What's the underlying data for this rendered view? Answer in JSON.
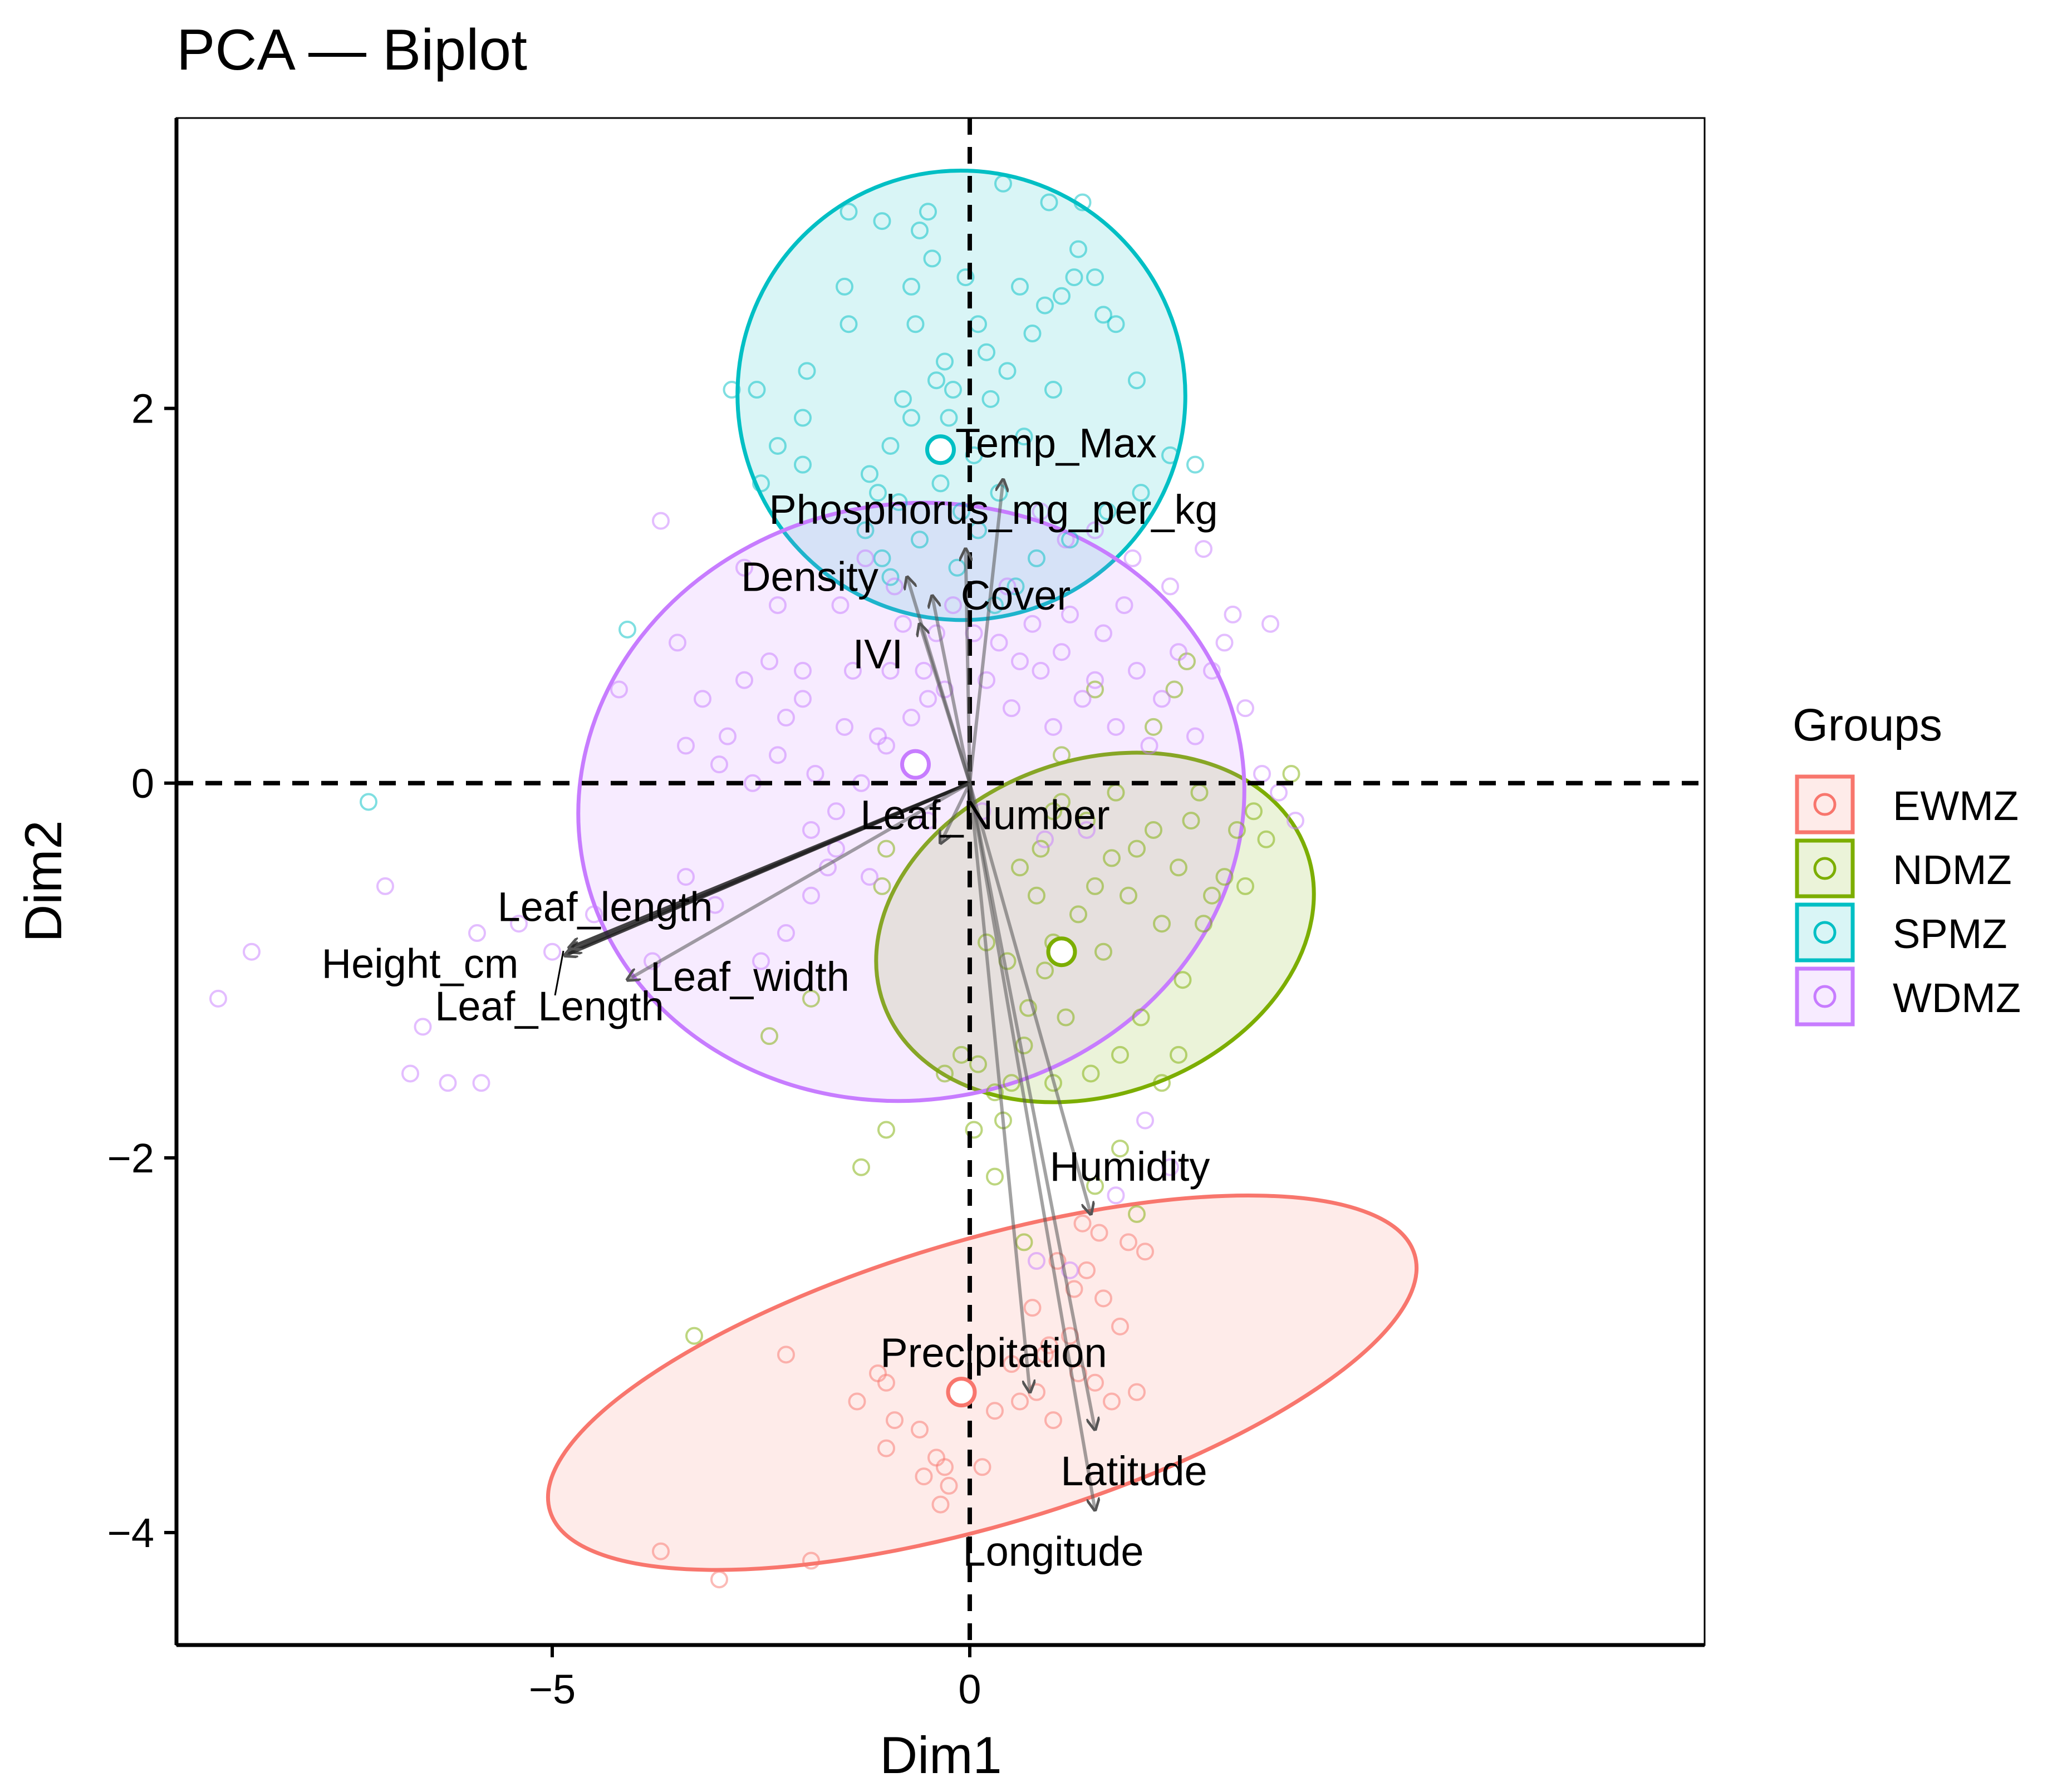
{
  "chart_data": {
    "type": "scatter",
    "title": "PCA — Biplot",
    "xlabel": "Dim1",
    "ylabel": "Dim2",
    "xlim": [
      -9.5,
      8.8
    ],
    "ylim": [
      -4.6,
      3.55
    ],
    "xticks": [
      -5,
      0
    ],
    "xtick_labels": [
      "−5",
      "0"
    ],
    "yticks": [
      -4,
      -2,
      0,
      2
    ],
    "ytick_labels": [
      "−4",
      "−2",
      "0",
      "2"
    ],
    "reference_lines": {
      "x": 0,
      "y": 0,
      "style": "dashed"
    },
    "legend": {
      "title": "Groups",
      "position": "right",
      "items": [
        {
          "name": "EWMZ",
          "color": "#F8766D"
        },
        {
          "name": "NDMZ",
          "color": "#7CAE00"
        },
        {
          "name": "SPMZ",
          "color": "#00BFC4"
        },
        {
          "name": "WDMZ",
          "color": "#C77CFF"
        }
      ]
    },
    "groups": [
      {
        "name": "EWMZ",
        "color": "#F8766D",
        "centroid": [
          -0.1,
          -3.25
        ],
        "ellipse": {
          "center": [
            0.15,
            -3.2
          ],
          "rx": 5.4,
          "ry": 0.76,
          "angle_deg": 16.5
        },
        "points": [
          [
            -3.7,
            -4.1
          ],
          [
            -3.0,
            -4.25
          ],
          [
            -1.9,
            -4.15
          ],
          [
            -2.2,
            -3.05
          ],
          [
            -1.1,
            -3.15
          ],
          [
            -1.0,
            -3.2
          ],
          [
            -0.9,
            -3.4
          ],
          [
            -0.6,
            -3.45
          ],
          [
            -0.4,
            -3.6
          ],
          [
            -0.55,
            -3.7
          ],
          [
            -0.3,
            -3.65
          ],
          [
            -0.25,
            -3.75
          ],
          [
            0.15,
            -3.65
          ],
          [
            0.3,
            -3.35
          ],
          [
            0.5,
            -3.1
          ],
          [
            0.8,
            -3.25
          ],
          [
            0.9,
            -3.05
          ],
          [
            1.0,
            -3.4
          ],
          [
            1.2,
            -2.95
          ],
          [
            1.3,
            -3.15
          ],
          [
            1.5,
            -3.2
          ],
          [
            1.7,
            -3.3
          ],
          [
            2.0,
            -3.25
          ],
          [
            1.6,
            -2.75
          ],
          [
            1.8,
            -2.9
          ],
          [
            2.1,
            -2.5
          ],
          [
            1.9,
            -2.45
          ],
          [
            1.4,
            -2.6
          ],
          [
            1.05,
            -2.55
          ],
          [
            0.75,
            -2.8
          ],
          [
            1.35,
            -2.35
          ],
          [
            1.55,
            -2.4
          ],
          [
            0.95,
            -3.0
          ],
          [
            1.25,
            -2.7
          ],
          [
            0.6,
            -3.3
          ],
          [
            -0.35,
            -3.85
          ],
          [
            -1.0,
            -3.55
          ],
          [
            -1.35,
            -3.3
          ]
        ]
      },
      {
        "name": "NDMZ",
        "color": "#7CAE00",
        "centroid": [
          1.1,
          -0.9
        ],
        "ellipse": {
          "center": [
            1.5,
            -0.77
          ],
          "rx": 2.0,
          "ry": 1.2,
          "angle_deg": -70
        },
        "points": [
          [
            -3.3,
            -2.95
          ],
          [
            -1.3,
            -2.05
          ],
          [
            -1.0,
            -1.85
          ],
          [
            -1.0,
            -0.35
          ],
          [
            -1.05,
            -0.55
          ],
          [
            -1.9,
            -1.15
          ],
          [
            -2.4,
            -1.35
          ],
          [
            -0.3,
            -1.55
          ],
          [
            -0.1,
            -1.45
          ],
          [
            0.1,
            -1.5
          ],
          [
            0.3,
            -1.65
          ],
          [
            0.05,
            -1.85
          ],
          [
            0.4,
            -1.8
          ],
          [
            0.5,
            -1.6
          ],
          [
            0.7,
            -1.2
          ],
          [
            0.9,
            -1.0
          ],
          [
            1.0,
            -0.85
          ],
          [
            1.15,
            -1.25
          ],
          [
            1.3,
            -0.7
          ],
          [
            1.5,
            -0.55
          ],
          [
            1.6,
            -0.9
          ],
          [
            1.7,
            -0.4
          ],
          [
            1.9,
            -0.6
          ],
          [
            2.0,
            -0.35
          ],
          [
            2.2,
            -0.25
          ],
          [
            2.3,
            -0.75
          ],
          [
            2.5,
            -0.45
          ],
          [
            2.65,
            -0.2
          ],
          [
            2.75,
            -0.05
          ],
          [
            2.9,
            -0.6
          ],
          [
            3.05,
            -0.5
          ],
          [
            3.2,
            -0.25
          ],
          [
            3.4,
            -0.15
          ],
          [
            3.55,
            -0.3
          ],
          [
            3.85,
            0.05
          ],
          [
            3.3,
            -0.55
          ],
          [
            2.8,
            -0.75
          ],
          [
            2.55,
            -1.05
          ],
          [
            2.05,
            -1.25
          ],
          [
            1.8,
            -1.45
          ],
          [
            1.45,
            -1.55
          ],
          [
            1.0,
            -1.6
          ],
          [
            0.65,
            -1.4
          ],
          [
            0.45,
            -0.95
          ],
          [
            0.85,
            -0.35
          ],
          [
            1.1,
            -0.1
          ],
          [
            1.4,
            -0.2
          ],
          [
            1.75,
            -0.05
          ],
          [
            2.2,
            0.3
          ],
          [
            2.45,
            0.5
          ],
          [
            2.6,
            0.65
          ],
          [
            1.5,
            0.5
          ],
          [
            1.1,
            0.15
          ],
          [
            0.8,
            -0.6
          ],
          [
            2.0,
            -2.3
          ],
          [
            1.5,
            -2.15
          ],
          [
            0.65,
            -2.45
          ],
          [
            0.3,
            -2.1
          ],
          [
            1.8,
            -1.95
          ],
          [
            2.3,
            -1.6
          ],
          [
            2.5,
            -1.45
          ],
          [
            1.0,
            -0.15
          ],
          [
            0.2,
            -0.85
          ],
          [
            0.6,
            -0.45
          ]
        ]
      },
      {
        "name": "SPMZ",
        "color": "#00BFC4",
        "centroid": [
          -0.35,
          1.78
        ],
        "ellipse": {
          "center": [
            -0.1,
            2.07
          ],
          "rx": 2.68,
          "ry": 1.2,
          "angle_deg": 20
        },
        "points": [
          [
            -7.2,
            -0.1
          ],
          [
            -4.1,
            0.82
          ],
          [
            -2.85,
            2.1
          ],
          [
            -2.55,
            2.1
          ],
          [
            -2.3,
            1.8
          ],
          [
            -2.5,
            1.6
          ],
          [
            -2.0,
            1.95
          ],
          [
            -2.0,
            1.7
          ],
          [
            -1.95,
            2.2
          ],
          [
            -1.45,
            2.45
          ],
          [
            -1.5,
            2.65
          ],
          [
            -1.45,
            3.05
          ],
          [
            -1.2,
            1.65
          ],
          [
            -1.1,
            1.55
          ],
          [
            -0.95,
            1.8
          ],
          [
            -0.8,
            2.05
          ],
          [
            -0.7,
            1.95
          ],
          [
            -0.65,
            2.45
          ],
          [
            -0.7,
            2.65
          ],
          [
            -0.6,
            2.95
          ],
          [
            -0.5,
            3.05
          ],
          [
            -0.4,
            2.15
          ],
          [
            -0.3,
            2.25
          ],
          [
            -0.2,
            2.1
          ],
          [
            -0.05,
            2.7
          ],
          [
            0.1,
            2.45
          ],
          [
            0.2,
            2.3
          ],
          [
            0.25,
            2.05
          ],
          [
            0.45,
            2.2
          ],
          [
            0.6,
            2.65
          ],
          [
            0.75,
            2.4
          ],
          [
            0.9,
            2.55
          ],
          [
            1.0,
            2.1
          ],
          [
            1.1,
            2.6
          ],
          [
            1.25,
            2.7
          ],
          [
            1.3,
            2.85
          ],
          [
            1.35,
            3.1
          ],
          [
            1.5,
            2.7
          ],
          [
            1.6,
            2.5
          ],
          [
            1.75,
            2.45
          ],
          [
            2.0,
            2.15
          ],
          [
            2.4,
            1.75
          ],
          [
            2.7,
            1.7
          ],
          [
            2.05,
            1.55
          ],
          [
            1.65,
            1.45
          ],
          [
            1.2,
            1.3
          ],
          [
            0.8,
            1.2
          ],
          [
            0.55,
            1.05
          ],
          [
            0.3,
            0.95
          ],
          [
            0.1,
            1.35
          ],
          [
            -0.1,
            1.45
          ],
          [
            -0.35,
            1.6
          ],
          [
            -0.6,
            1.3
          ],
          [
            -0.85,
            1.5
          ],
          [
            -1.05,
            1.2
          ],
          [
            -1.25,
            1.35
          ],
          [
            -0.45,
            2.8
          ],
          [
            0.4,
            3.2
          ],
          [
            0.95,
            3.1
          ],
          [
            -1.05,
            3.0
          ],
          [
            -0.25,
            1.95
          ],
          [
            0.05,
            1.75
          ],
          [
            0.35,
            1.55
          ],
          [
            -0.15,
            1.15
          ],
          [
            -0.95,
            1.1
          ],
          [
            0.65,
            1.85
          ]
        ]
      },
      {
        "name": "WDMZ",
        "color": "#C77CFF",
        "centroid": [
          -0.65,
          0.1
        ],
        "ellipse": {
          "center": [
            -0.7,
            -0.1
          ],
          "rx": 4.0,
          "ry": 1.59,
          "angle_deg": 10
        },
        "points": [
          [
            -9.0,
            -1.15
          ],
          [
            -8.6,
            -0.9
          ],
          [
            -7.0,
            -0.55
          ],
          [
            -6.7,
            -1.55
          ],
          [
            -6.55,
            -1.3
          ],
          [
            -6.25,
            -1.6
          ],
          [
            -5.9,
            -0.8
          ],
          [
            -5.85,
            -1.6
          ],
          [
            -5.4,
            -0.75
          ],
          [
            -5.0,
            -0.9
          ],
          [
            -4.5,
            -0.7
          ],
          [
            -4.2,
            0.5
          ],
          [
            -3.7,
            1.4
          ],
          [
            -3.5,
            0.75
          ],
          [
            -3.4,
            0.2
          ],
          [
            -3.2,
            0.45
          ],
          [
            -3.0,
            0.1
          ],
          [
            -2.9,
            0.25
          ],
          [
            -2.7,
            0.55
          ],
          [
            -2.6,
            0.0
          ],
          [
            -2.4,
            0.65
          ],
          [
            -2.3,
            0.15
          ],
          [
            -2.2,
            0.35
          ],
          [
            -2.0,
            0.45
          ],
          [
            -1.9,
            -0.25
          ],
          [
            -1.85,
            0.05
          ],
          [
            -1.7,
            -0.45
          ],
          [
            -1.6,
            -0.15
          ],
          [
            -1.5,
            0.3
          ],
          [
            -1.3,
            0.0
          ],
          [
            -1.2,
            -0.5
          ],
          [
            -1.1,
            0.25
          ],
          [
            -0.95,
            0.6
          ],
          [
            -0.8,
            0.85
          ],
          [
            -0.7,
            0.35
          ],
          [
            -0.55,
            0.6
          ],
          [
            -0.4,
            0.8
          ],
          [
            -0.3,
            0.5
          ],
          [
            -0.2,
            0.95
          ],
          [
            0.05,
            0.8
          ],
          [
            0.2,
            0.55
          ],
          [
            0.35,
            0.75
          ],
          [
            0.5,
            0.4
          ],
          [
            0.6,
            0.65
          ],
          [
            0.75,
            0.85
          ],
          [
            0.85,
            0.6
          ],
          [
            1.0,
            0.3
          ],
          [
            1.1,
            0.7
          ],
          [
            1.2,
            0.9
          ],
          [
            1.35,
            0.45
          ],
          [
            1.5,
            0.55
          ],
          [
            1.6,
            0.8
          ],
          [
            1.75,
            0.3
          ],
          [
            1.85,
            0.95
          ],
          [
            2.0,
            0.6
          ],
          [
            2.15,
            0.2
          ],
          [
            2.3,
            0.45
          ],
          [
            2.5,
            0.7
          ],
          [
            2.7,
            0.25
          ],
          [
            2.9,
            0.6
          ],
          [
            3.05,
            0.75
          ],
          [
            3.3,
            0.4
          ],
          [
            3.5,
            0.05
          ],
          [
            3.7,
            -0.05
          ],
          [
            3.6,
            0.85
          ],
          [
            2.8,
            1.25
          ],
          [
            2.4,
            1.05
          ],
          [
            1.95,
            1.2
          ],
          [
            1.5,
            1.35
          ],
          [
            1.15,
            1.3
          ],
          [
            0.85,
            1.45
          ],
          [
            -1.25,
            1.2
          ],
          [
            -1.55,
            0.95
          ],
          [
            -2.0,
            0.6
          ],
          [
            -2.3,
            0.95
          ],
          [
            -2.7,
            1.15
          ],
          [
            -1.9,
            -0.6
          ],
          [
            -2.5,
            -0.95
          ],
          [
            -3.05,
            -0.65
          ],
          [
            -3.4,
            -0.5
          ],
          [
            -3.8,
            -0.95
          ],
          [
            -2.2,
            -0.8
          ],
          [
            -1.6,
            -0.35
          ],
          [
            -0.5,
            -0.2
          ],
          [
            0.15,
            -0.15
          ],
          [
            0.9,
            -0.3
          ],
          [
            1.4,
            -0.25
          ],
          [
            2.1,
            -1.8
          ],
          [
            2.4,
            -2.05
          ],
          [
            1.75,
            -2.2
          ],
          [
            1.2,
            -2.6
          ],
          [
            0.8,
            -2.55
          ],
          [
            -0.5,
            0.45
          ],
          [
            -1.0,
            0.2
          ],
          [
            -1.4,
            0.6
          ],
          [
            -0.9,
            1.05
          ],
          [
            0.45,
            1.05
          ],
          [
            3.9,
            -0.2
          ],
          [
            3.15,
            0.9
          ]
        ]
      }
    ],
    "variables": [
      {
        "name": "Temp_Max",
        "x": 0.4,
        "y": 1.62
      },
      {
        "name": "Phosphorus_mg_per_kg",
        "x": -0.05,
        "y": 1.25
      },
      {
        "name": "Cover",
        "x": -0.45,
        "y": 1.0
      },
      {
        "name": "Density",
        "x": -0.75,
        "y": 1.1
      },
      {
        "name": "IVI",
        "x": -0.6,
        "y": 0.85
      },
      {
        "name": "Leaf_Number",
        "x": -0.35,
        "y": -0.32
      },
      {
        "name": "Leaf_length",
        "x": -4.8,
        "y": -0.9
      },
      {
        "name": "Height_cm",
        "x": -4.85,
        "y": -0.92
      },
      {
        "name": "Leaf_Length",
        "x": -4.8,
        "y": -0.88
      },
      {
        "name": "Leaf_width",
        "x": -4.1,
        "y": -1.05
      },
      {
        "name": "Humidity",
        "x": 1.45,
        "y": -2.3
      },
      {
        "name": "Precipitation",
        "x": 0.72,
        "y": -3.25
      },
      {
        "name": "Latitude",
        "x": 1.5,
        "y": -3.45
      },
      {
        "name": "Longitude",
        "x": 1.5,
        "y": -3.88
      }
    ]
  }
}
